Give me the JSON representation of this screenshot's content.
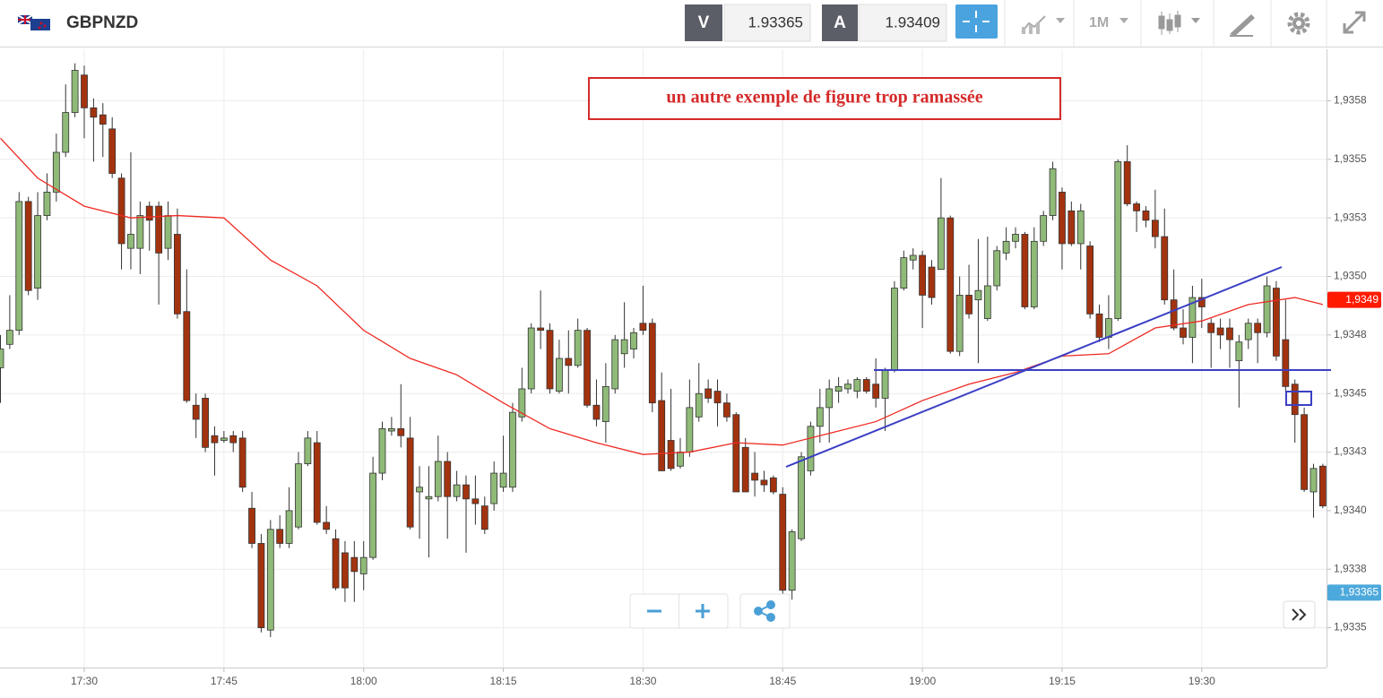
{
  "header": {
    "symbol": "GBPNZD",
    "bid_label": "V",
    "bid": 1.93365,
    "ask_label": "A",
    "ask": 1.93409,
    "timeframe": "1M"
  },
  "chart_data": {
    "type": "candlestick",
    "x": [
      "17:21",
      "17:22",
      "17:23",
      "17:24",
      "17:25",
      "17:26",
      "17:27",
      "17:28",
      "17:29",
      "17:30",
      "17:31",
      "17:32",
      "17:33",
      "17:34",
      "17:35",
      "17:36",
      "17:37",
      "17:38",
      "17:39",
      "17:40",
      "17:41",
      "17:42",
      "17:43",
      "17:44",
      "17:45",
      "17:46",
      "17:47",
      "17:48",
      "17:49",
      "17:50",
      "17:51",
      "17:52",
      "17:53",
      "17:54",
      "17:55",
      "17:56",
      "17:57",
      "17:58",
      "17:59",
      "18:00",
      "18:01",
      "18:02",
      "18:03",
      "18:04",
      "18:05",
      "18:06",
      "18:07",
      "18:08",
      "18:09",
      "18:10",
      "18:11",
      "18:12",
      "18:13",
      "18:14",
      "18:15",
      "18:16",
      "18:17",
      "18:18",
      "18:19",
      "18:20",
      "18:21",
      "18:22",
      "18:23",
      "18:24",
      "18:25",
      "18:26",
      "18:27",
      "18:28",
      "18:29",
      "18:30",
      "18:31",
      "18:32",
      "18:33",
      "18:34",
      "18:35",
      "18:36",
      "18:37",
      "18:38",
      "18:39",
      "18:40",
      "18:41",
      "18:42",
      "18:43",
      "18:44",
      "18:45",
      "18:46",
      "18:47",
      "18:48",
      "18:49",
      "18:50",
      "18:51",
      "18:52",
      "18:53",
      "18:54",
      "18:55",
      "18:56",
      "18:57",
      "18:58",
      "18:59",
      "19:00",
      "19:01",
      "19:02",
      "19:03",
      "19:04",
      "19:05",
      "19:06",
      "19:07",
      "19:08",
      "19:09",
      "19:10",
      "19:11",
      "19:12",
      "19:13",
      "19:14",
      "19:15",
      "19:16",
      "19:17",
      "19:18",
      "19:19",
      "19:20",
      "19:21",
      "19:22",
      "19:23",
      "19:24",
      "19:25",
      "19:26",
      "19:27",
      "19:28",
      "19:29",
      "19:30",
      "19:31",
      "19:32",
      "19:33",
      "19:34",
      "19:35",
      "19:36",
      "19:37",
      "19:38",
      "19:39",
      "19:40",
      "19:41",
      "19:42",
      "19:43"
    ],
    "open": [
      1.93461,
      1.93471,
      1.93477,
      1.93532,
      1.93495,
      1.93526,
      1.93536,
      1.93553,
      1.9357,
      1.93586,
      1.93572,
      1.93569,
      1.93563,
      1.93542,
      1.93512,
      1.93512,
      1.9353,
      1.9353,
      1.93512,
      1.93518,
      1.93485,
      1.93445,
      1.93448,
      1.93432,
      1.9343,
      1.93432,
      1.93431,
      1.93401,
      1.93386,
      1.93349,
      1.93392,
      1.93386,
      1.93393,
      1.9342,
      1.93429,
      1.93395,
      1.93388,
      1.93382,
      1.9338,
      1.93373,
      1.9338,
      1.93416,
      1.93434,
      1.93435,
      1.93431,
      1.93408,
      1.93405,
      1.93406,
      1.93421,
      1.93406,
      1.93411,
      1.93405,
      1.93402,
      1.93403,
      1.9341,
      1.9341,
      1.9344,
      1.93452,
      1.93478,
      1.93477,
      1.93451,
      1.93465,
      1.93462,
      1.93477,
      1.93445,
      1.93438,
      1.93452,
      1.93467,
      1.93469,
      1.9348,
      1.9348,
      1.93447,
      1.9343,
      1.93419,
      1.93425,
      1.9344,
      1.93452,
      1.93451,
      1.93446,
      1.93441,
      1.93427,
      1.93416,
      1.93413,
      1.93414,
      1.93407,
      1.93366,
      1.93388,
      1.93417,
      1.93436,
      1.93444,
      1.93451,
      1.93452,
      1.93451,
      1.93456,
      1.93454,
      1.93448,
      1.9346,
      1.93495,
      1.93507,
      1.93509,
      1.93504,
      1.93503,
      1.93525,
      1.93468,
      1.93492,
      1.9349,
      1.93482,
      1.93496,
      1.9351,
      1.93515,
      1.93518,
      1.93487,
      1.93515,
      1.93526,
      1.93536,
      1.93528,
      1.93514,
      1.93513,
      1.93484,
      1.93474,
      1.93482,
      1.93549,
      1.93531,
      1.93528,
      1.93524,
      1.93517,
      1.9349,
      1.93478,
      1.93474,
      1.93491,
      1.9348,
      1.93478,
      1.93478,
      1.93464,
      1.93473,
      1.9348,
      1.93476,
      1.93495,
      1.93473,
      1.93454,
      1.93441,
      1.93408,
      1.93419
    ],
    "high": [
      1.93475,
      1.93492,
      1.93536,
      1.93534,
      1.93536,
      1.93544,
      1.93561,
      1.93582,
      1.93591,
      1.9359,
      1.93576,
      1.93574,
      1.93568,
      1.93544,
      1.93553,
      1.93532,
      1.93532,
      1.93532,
      1.93532,
      1.93529,
      1.93503,
      1.9345,
      1.9345,
      1.93436,
      1.93434,
      1.93434,
      1.93434,
      1.93408,
      1.9339,
      1.93396,
      1.93398,
      1.9341,
      1.93425,
      1.93434,
      1.93434,
      1.93402,
      1.93392,
      1.93387,
      1.93387,
      1.93387,
      1.93423,
      1.93438,
      1.9344,
      1.93454,
      1.9344,
      1.93419,
      1.93419,
      1.93432,
      1.93425,
      1.93417,
      1.93415,
      1.93415,
      1.93406,
      1.93421,
      1.93432,
      1.93446,
      1.93461,
      1.9348,
      1.93494,
      1.9348,
      1.93473,
      1.93477,
      1.93482,
      1.93478,
      1.93456,
      1.93463,
      1.93475,
      1.93489,
      1.93478,
      1.93496,
      1.93482,
      1.93459,
      1.93452,
      1.93431,
      1.93456,
      1.93463,
      1.93456,
      1.93456,
      1.9345,
      1.93442,
      1.93431,
      1.93425,
      1.93417,
      1.93415,
      1.9341,
      1.93392,
      1.93425,
      1.93438,
      1.93452,
      1.93456,
      1.93457,
      1.93456,
      1.93457,
      1.93457,
      1.93465,
      1.93461,
      1.93498,
      1.93511,
      1.93512,
      1.93511,
      1.93507,
      1.93542,
      1.93526,
      1.935,
      1.93505,
      1.93516,
      1.93517,
      1.93513,
      1.93521,
      1.93521,
      1.93519,
      1.93521,
      1.93528,
      1.93549,
      1.93538,
      1.93532,
      1.93531,
      1.93515,
      1.93488,
      1.93492,
      1.9355,
      1.93556,
      1.93532,
      1.9353,
      1.93537,
      1.93529,
      1.93503,
      1.93486,
      1.93496,
      1.93499,
      1.93482,
      1.93482,
      1.93482,
      1.93475,
      1.93482,
      1.93482,
      1.935,
      1.93498,
      1.9349,
      1.93456,
      1.93444,
      1.9342,
      1.9342
    ],
    "low": [
      1.93446,
      1.93469,
      1.93475,
      1.93492,
      1.9349,
      1.93524,
      1.93532,
      1.93551,
      1.93568,
      1.93559,
      1.93549,
      1.93551,
      1.93542,
      1.93503,
      1.93503,
      1.93501,
      1.93511,
      1.93488,
      1.93507,
      1.93482,
      1.93446,
      1.93431,
      1.93425,
      1.93415,
      1.93429,
      1.93425,
      1.93408,
      1.93384,
      1.93348,
      1.93346,
      1.93384,
      1.93384,
      1.93392,
      1.93419,
      1.93394,
      1.9339,
      1.93366,
      1.93361,
      1.93361,
      1.93366,
      1.93379,
      1.93413,
      1.93432,
      1.93427,
      1.93392,
      1.93388,
      1.9338,
      1.93404,
      1.93388,
      1.93404,
      1.93382,
      1.93394,
      1.9339,
      1.934,
      1.93408,
      1.93408,
      1.93438,
      1.9345,
      1.93469,
      1.9345,
      1.9345,
      1.9345,
      1.93461,
      1.93444,
      1.93436,
      1.93429,
      1.9345,
      1.93461,
      1.93465,
      1.93475,
      1.93442,
      1.93417,
      1.93417,
      1.93418,
      1.93423,
      1.93438,
      1.93446,
      1.93436,
      1.93438,
      1.93408,
      1.93408,
      1.93406,
      1.93408,
      1.93407,
      1.93364,
      1.93362,
      1.93387,
      1.93415,
      1.93429,
      1.93429,
      1.93446,
      1.9345,
      1.93448,
      1.9345,
      1.93444,
      1.93434,
      1.93459,
      1.93494,
      1.93503,
      1.93478,
      1.93488,
      1.93503,
      1.93467,
      1.93466,
      1.93482,
      1.93463,
      1.93481,
      1.93494,
      1.93507,
      1.93512,
      1.93486,
      1.93486,
      1.93513,
      1.93524,
      1.93503,
      1.93513,
      1.93503,
      1.93482,
      1.93472,
      1.93469,
      1.93481,
      1.9353,
      1.93519,
      1.93521,
      1.93512,
      1.93488,
      1.93477,
      1.93471,
      1.93463,
      1.93478,
      1.93461,
      1.93469,
      1.93461,
      1.93444,
      1.93469,
      1.93463,
      1.93474,
      1.93464,
      1.93451,
      1.93429,
      1.93408,
      1.93397,
      1.93401
    ],
    "close": [
      1.93469,
      1.93477,
      1.93532,
      1.93494,
      1.93526,
      1.93536,
      1.93553,
      1.9357,
      1.93588,
      1.93572,
      1.93568,
      1.93565,
      1.93544,
      1.93514,
      1.93518,
      1.93526,
      1.93524,
      1.9351,
      1.93526,
      1.93484,
      1.93447,
      1.93439,
      1.93427,
      1.93429,
      1.93431,
      1.93429,
      1.9341,
      1.93386,
      1.9335,
      1.93392,
      1.93386,
      1.934,
      1.9342,
      1.93431,
      1.93395,
      1.93392,
      1.93367,
      1.93367,
      1.93374,
      1.9338,
      1.93416,
      1.93435,
      1.93435,
      1.93432,
      1.93393,
      1.9341,
      1.93406,
      1.93421,
      1.93406,
      1.93411,
      1.93405,
      1.93403,
      1.93392,
      1.93416,
      1.93416,
      1.93442,
      1.93452,
      1.93478,
      1.93477,
      1.93452,
      1.93465,
      1.93462,
      1.93477,
      1.93445,
      1.93439,
      1.93453,
      1.93473,
      1.93473,
      1.93476,
      1.93477,
      1.93446,
      1.93417,
      1.93418,
      1.93425,
      1.93444,
      1.9345,
      1.93448,
      1.93446,
      1.9344,
      1.93408,
      1.93408,
      1.93413,
      1.93411,
      1.93408,
      1.93366,
      1.93391,
      1.93423,
      1.93436,
      1.93444,
      1.93452,
      1.93453,
      1.93454,
      1.93456,
      1.93451,
      1.93448,
      1.9346,
      1.93495,
      1.93508,
      1.93509,
      1.93492,
      1.93491,
      1.93525,
      1.93468,
      1.93492,
      1.93484,
      1.93494,
      1.93496,
      1.93511,
      1.93515,
      1.93518,
      1.93487,
      1.93515,
      1.93526,
      1.93546,
      1.93514,
      1.93514,
      1.93528,
      1.93484,
      1.93474,
      1.93482,
      1.93549,
      1.93531,
      1.93528,
      1.93524,
      1.93517,
      1.9349,
      1.93478,
      1.93474,
      1.93491,
      1.93487,
      1.93476,
      1.93475,
      1.93473,
      1.93472,
      1.9348,
      1.93476,
      1.93496,
      1.93466,
      1.93453,
      1.93441,
      1.93409,
      1.93418,
      1.93402
    ],
    "up_color": "#8fba78",
    "down_color": "#a3330f",
    "ylim": [
      1.93333,
      1.93597
    ],
    "yticks": [
      {
        "value": 1.93575,
        "label": "1,9358"
      },
      {
        "value": 1.9355,
        "label": "1,9355"
      },
      {
        "value": 1.93525,
        "label": "1,9353"
      },
      {
        "value": 1.935,
        "label": "1,9350"
      },
      {
        "value": 1.93475,
        "label": "1,9348"
      },
      {
        "value": 1.9345,
        "label": "1,9345"
      },
      {
        "value": 1.93425,
        "label": "1,9343"
      },
      {
        "value": 1.934,
        "label": "1,9340"
      },
      {
        "value": 1.93375,
        "label": "1,9338"
      },
      {
        "value": 1.9335,
        "label": "1,9335"
      }
    ],
    "xticks": [
      "17:30",
      "17:45",
      "18:00",
      "18:15",
      "18:30",
      "18:45",
      "19:00",
      "19:15",
      "19:30"
    ],
    "grid": true,
    "overlay": {
      "type": "line",
      "color": "#ee2a22",
      "x": [
        "17:21",
        "17:25",
        "17:30",
        "17:35",
        "17:40",
        "17:45",
        "17:50",
        "17:55",
        "18:00",
        "18:05",
        "18:10",
        "18:15",
        "18:20",
        "18:25",
        "18:30",
        "18:35",
        "18:40",
        "18:45",
        "18:50",
        "18:55",
        "19:00",
        "19:05",
        "19:10",
        "19:15",
        "19:20",
        "19:25",
        "19:30",
        "19:35",
        "19:40",
        "19:43"
      ],
      "values": [
        1.93559,
        1.93542,
        1.9353,
        1.93525,
        1.93526,
        1.93525,
        1.93507,
        1.93496,
        1.93477,
        1.93465,
        1.93458,
        1.93446,
        1.93435,
        1.93429,
        1.93424,
        1.93425,
        1.93429,
        1.93428,
        1.93433,
        1.93438,
        1.93447,
        1.93454,
        1.93459,
        1.93466,
        1.93467,
        1.93478,
        1.93481,
        1.93488,
        1.93491,
        1.93488
      ]
    },
    "price_tags": [
      {
        "value": 1.9349,
        "label": "1,9349",
        "color": "#ff1a00"
      },
      {
        "value": 1.93365,
        "label": "1,93365",
        "color": "#4da9db"
      }
    ],
    "annotation": {
      "text": "un autre exemple de figure trop ramassée",
      "color": "#d42a2a"
    }
  }
}
